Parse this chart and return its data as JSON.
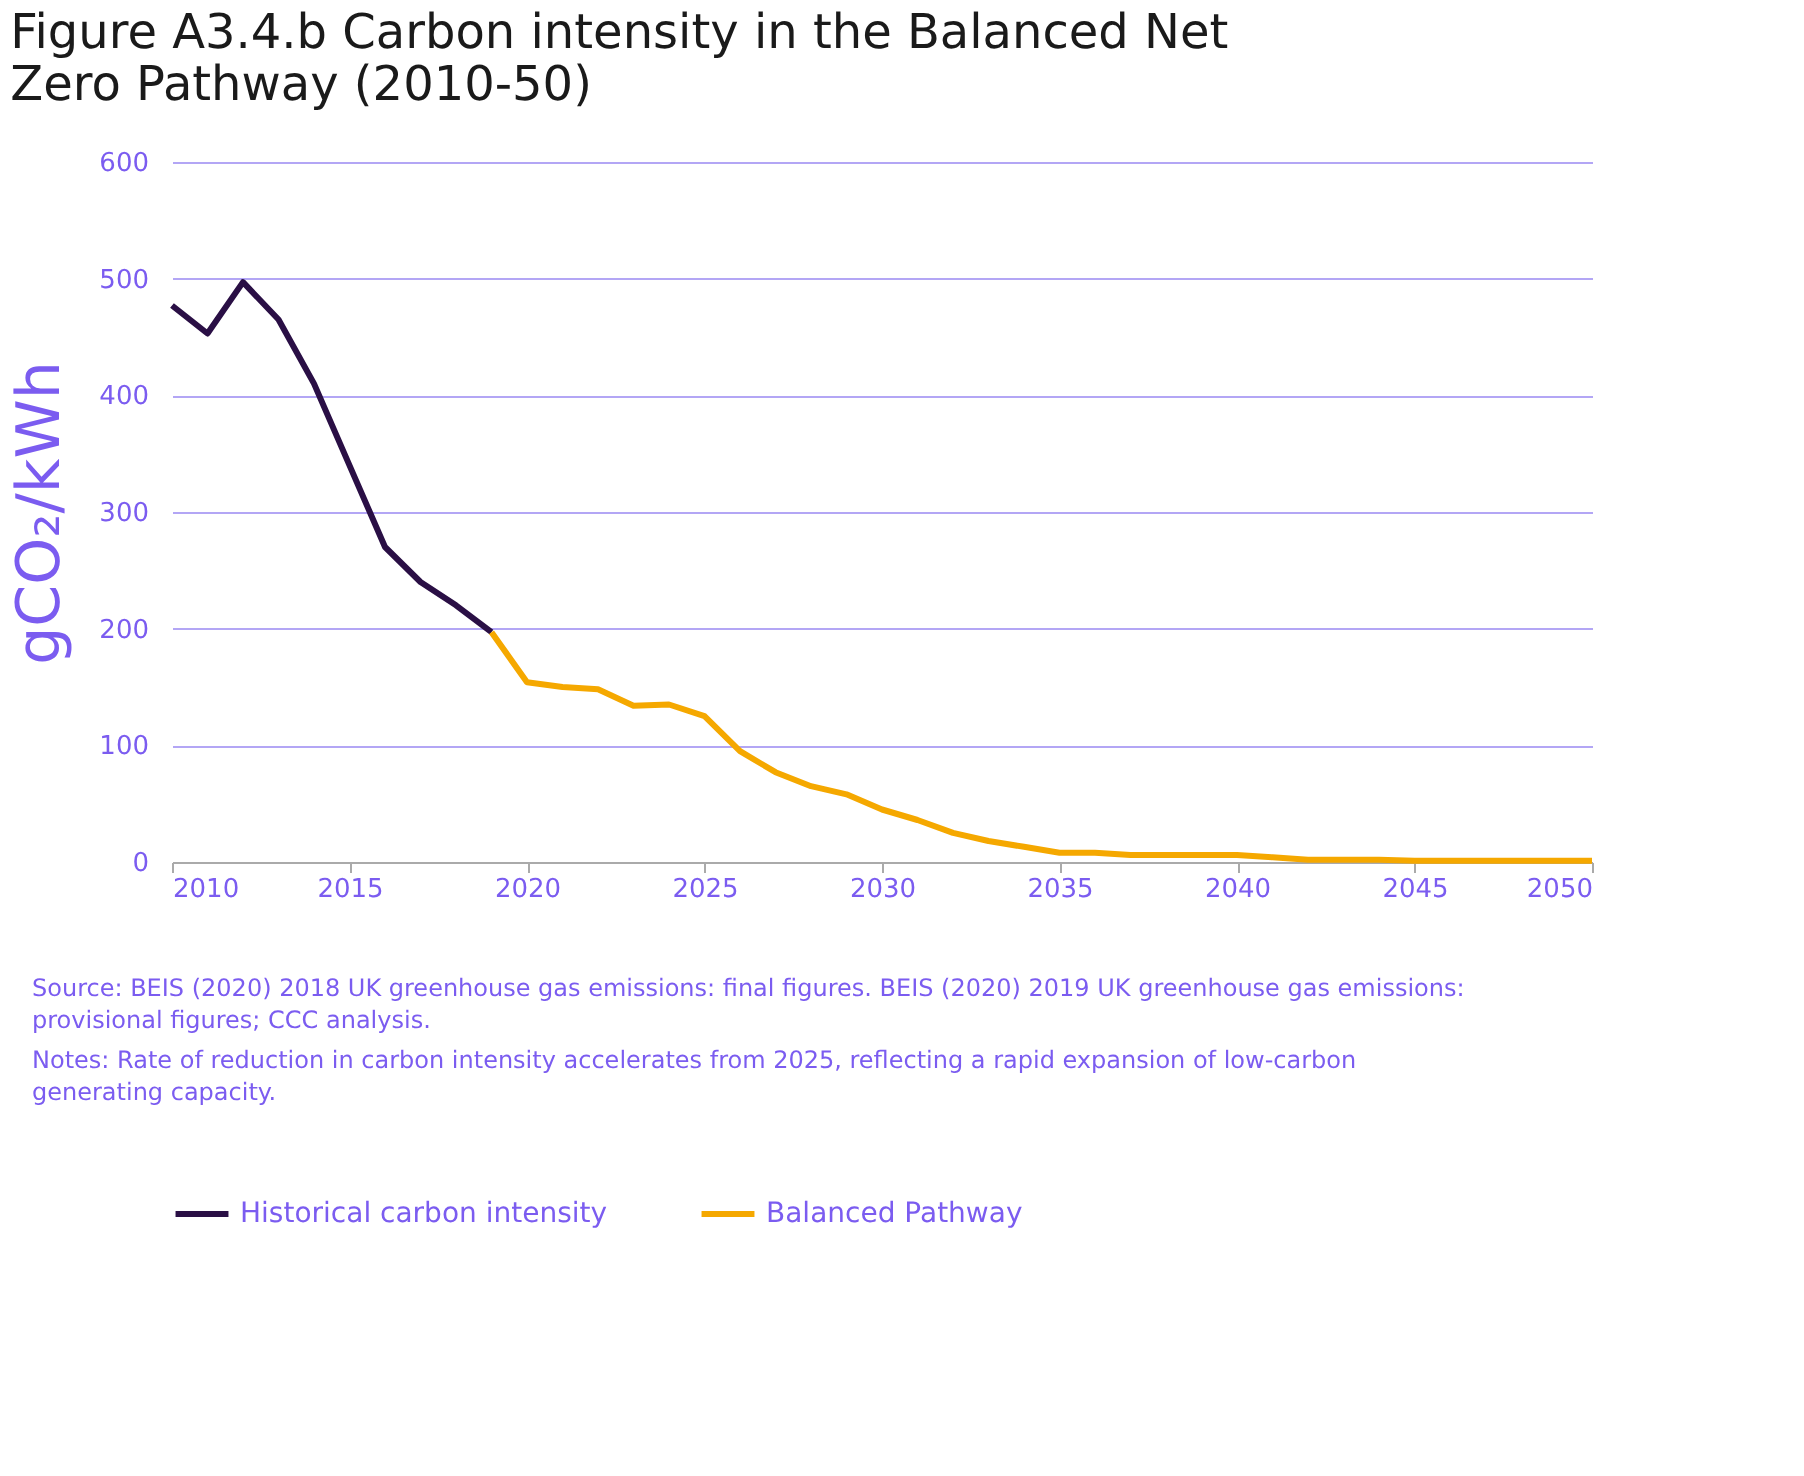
{
  "chart_data": {
    "type": "line",
    "title": "Figure A3.4.b Carbon intensity in the Balanced Net Zero Pathway (2010-50)",
    "ylabel": "gCO₂/kWh",
    "xlim": [
      2010,
      2050
    ],
    "xticks": [
      2010,
      2015,
      2020,
      2025,
      2030,
      2035,
      2040,
      2045,
      2050
    ],
    "ylim": [
      0,
      600
    ],
    "yticks": [
      0,
      100,
      200,
      300,
      400,
      500,
      600
    ],
    "grid": "y",
    "legend": "bottom",
    "marker": "none",
    "line_style": "solid",
    "series": [
      {
        "name": "Historical carbon intensity",
        "color": "#2a0f45",
        "x": [
          2010,
          2011,
          2012,
          2013,
          2014,
          2015,
          2016,
          2017,
          2018,
          2019
        ],
        "values": [
          477,
          453,
          497,
          465,
          410,
          340,
          270,
          240,
          220,
          197
        ]
      },
      {
        "name": "Balanced Pathway",
        "color": "#f5a800",
        "x": [
          2019,
          2020,
          2021,
          2022,
          2023,
          2024,
          2025,
          2026,
          2027,
          2028,
          2029,
          2030,
          2031,
          2032,
          2033,
          2034,
          2035,
          2036,
          2037,
          2038,
          2039,
          2040,
          2041,
          2042,
          2043,
          2044,
          2045,
          2046,
          2047,
          2048,
          2049,
          2050
        ],
        "values": [
          197,
          154,
          150,
          148,
          134,
          135,
          125,
          95,
          77,
          65,
          58,
          45,
          36,
          25,
          18,
          13,
          8,
          8,
          6,
          6,
          6,
          6,
          4,
          2,
          2,
          2,
          1,
          1,
          1,
          1,
          1,
          1
        ]
      }
    ],
    "annotations": [
      "Source: BEIS (2020) 2018 UK greenhouse gas emissions: final figures. BEIS (2020) 2019 UK greenhouse gas emissions: provisional figures; CCC analysis.",
      "Notes: Rate of reduction in carbon intensity accelerates from 2025, reflecting a rapid expansion of low-carbon generating capacity."
    ]
  }
}
